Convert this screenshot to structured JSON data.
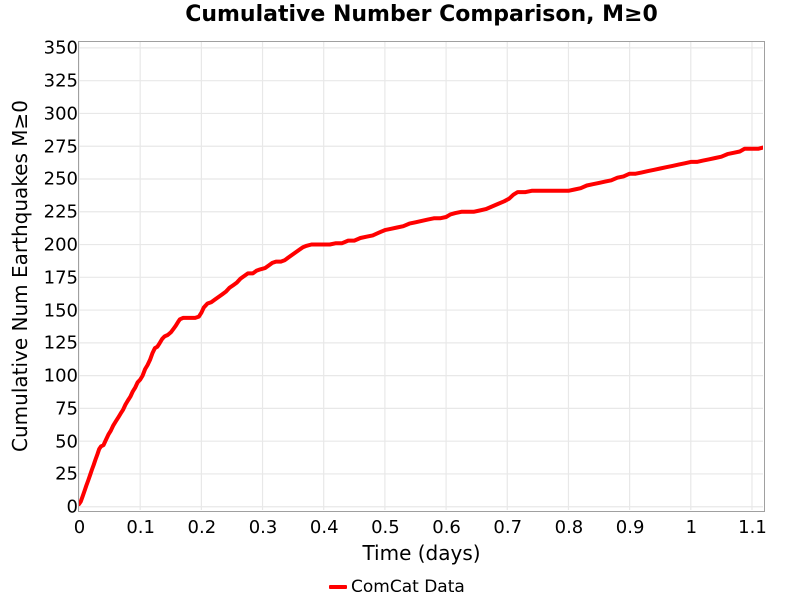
{
  "title": "Cumulative Number Comparison, M≥0",
  "colors": {
    "line": "#ff0000",
    "grid": "#e8e8e8",
    "spine": "#a0a0a0",
    "text": "#000000",
    "background": "#ffffff"
  },
  "legend": {
    "items": [
      {
        "label": "ComCat Data",
        "color": "#ff0000"
      }
    ],
    "position": "bottom-center"
  },
  "chart_data": {
    "type": "line",
    "title": "Cumulative Number Comparison, M≥0",
    "xlabel": "Time (days)",
    "ylabel": "Cumulative Num Earthquakes M≥0",
    "grid": true,
    "legend_position": "bottom-center",
    "xlim": [
      0,
      1.118
    ],
    "ylim": [
      -2.5,
      354.5
    ],
    "xticks": [
      0,
      0.1,
      0.2,
      0.3,
      0.4,
      0.5,
      0.6,
      0.7,
      0.8,
      0.9,
      1,
      1.1
    ],
    "xtick_labels": [
      "0",
      "0.1",
      "0.2",
      "0.3",
      "0.4",
      "0.5",
      "0.6",
      "0.7",
      "0.8",
      "0.9",
      "1",
      "1.1"
    ],
    "yticks": [
      0,
      25,
      50,
      75,
      100,
      125,
      150,
      175,
      200,
      225,
      250,
      275,
      300,
      325,
      350
    ],
    "ytick_labels": [
      "0",
      "25",
      "50",
      "75",
      "100",
      "125",
      "150",
      "175",
      "200",
      "225",
      "250",
      "275",
      "300",
      "325",
      "350"
    ],
    "series": [
      {
        "name": "ComCat Data",
        "color": "#ff0000",
        "line_width": 4,
        "x": [
          0,
          0.003,
          0.006,
          0.009,
          0.012,
          0.015,
          0.018,
          0.021,
          0.024,
          0.027,
          0.03,
          0.033,
          0.036,
          0.04,
          0.044,
          0.048,
          0.052,
          0.056,
          0.06,
          0.064,
          0.068,
          0.072,
          0.076,
          0.08,
          0.084,
          0.088,
          0.092,
          0.096,
          0.1,
          0.104,
          0.108,
          0.112,
          0.116,
          0.12,
          0.124,
          0.128,
          0.132,
          0.136,
          0.14,
          0.145,
          0.15,
          0.155,
          0.158,
          0.162,
          0.165,
          0.17,
          0.18,
          0.19,
          0.196,
          0.2,
          0.204,
          0.21,
          0.216,
          0.222,
          0.228,
          0.234,
          0.24,
          0.246,
          0.252,
          0.258,
          0.264,
          0.27,
          0.276,
          0.284,
          0.29,
          0.296,
          0.304,
          0.31,
          0.316,
          0.322,
          0.33,
          0.336,
          0.342,
          0.348,
          0.354,
          0.36,
          0.366,
          0.372,
          0.38,
          0.39,
          0.4,
          0.41,
          0.42,
          0.43,
          0.44,
          0.45,
          0.46,
          0.47,
          0.48,
          0.49,
          0.5,
          0.51,
          0.52,
          0.53,
          0.54,
          0.55,
          0.56,
          0.57,
          0.58,
          0.59,
          0.6,
          0.607,
          0.615,
          0.625,
          0.635,
          0.645,
          0.655,
          0.665,
          0.675,
          0.685,
          0.695,
          0.703,
          0.71,
          0.717,
          0.73,
          0.74,
          0.76,
          0.78,
          0.8,
          0.81,
          0.82,
          0.83,
          0.84,
          0.85,
          0.86,
          0.87,
          0.88,
          0.89,
          0.9,
          0.91,
          0.92,
          0.93,
          0.94,
          0.95,
          0.96,
          0.97,
          0.98,
          0.99,
          1.0,
          1.01,
          1.02,
          1.03,
          1.04,
          1.05,
          1.06,
          1.07,
          1.08,
          1.088,
          1.1,
          1.11,
          1.118
        ],
        "y": [
          2,
          4,
          8,
          12,
          16,
          20,
          24,
          28,
          32,
          36,
          40,
          44,
          46,
          47,
          51,
          55,
          58,
          62,
          65,
          68,
          71,
          74,
          78,
          81,
          84,
          88,
          91,
          95,
          97,
          100,
          105,
          108,
          112,
          117,
          121,
          122,
          125,
          128,
          130,
          131,
          133,
          136,
          138,
          141,
          143,
          144,
          144,
          144,
          145,
          148,
          152,
          155,
          156,
          158,
          160,
          162,
          164,
          167,
          169,
          171,
          174,
          176,
          178,
          178,
          180,
          181,
          182,
          184,
          186,
          187,
          187,
          188,
          190,
          192,
          194,
          196,
          198,
          199,
          200,
          200,
          200,
          200,
          201,
          201,
          203,
          203,
          205,
          206,
          207,
          209,
          211,
          212,
          213,
          214,
          216,
          217,
          218,
          219,
          220,
          220,
          221,
          223,
          224,
          225,
          225,
          225,
          226,
          227,
          229,
          231,
          233,
          235,
          238,
          240,
          240,
          241,
          241,
          241,
          241,
          242,
          243,
          245,
          246,
          247,
          248,
          249,
          251,
          252,
          254,
          254,
          255,
          256,
          257,
          258,
          259,
          260,
          261,
          262,
          263,
          263,
          264,
          265,
          266,
          267,
          269,
          270,
          271,
          273,
          273,
          273,
          274
        ]
      }
    ]
  }
}
